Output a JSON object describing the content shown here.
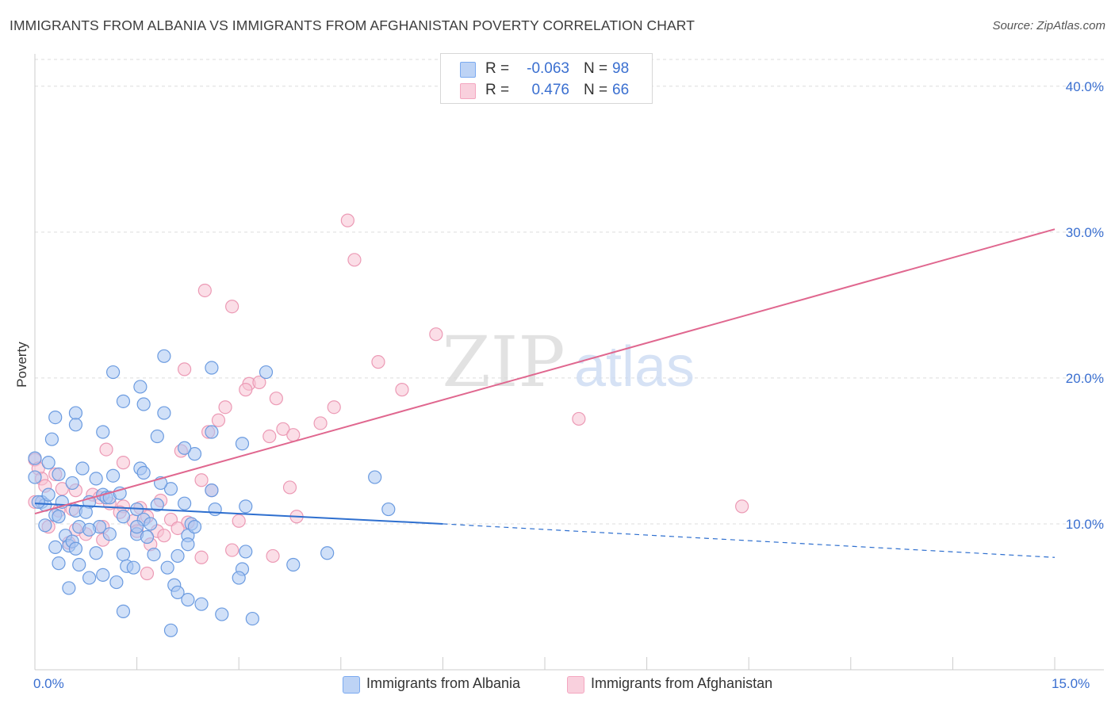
{
  "title": "IMMIGRANTS FROM ALBANIA VS IMMIGRANTS FROM AFGHANISTAN POVERTY CORRELATION CHART",
  "source": "Source: ZipAtlas.com",
  "watermark": {
    "zip": "ZIP",
    "atlas": "atlas"
  },
  "legend_top": [
    {
      "r_label": "R =",
      "r_value": "-0.063",
      "n_label": "N =",
      "n_value": "98",
      "color": "#7baaf0"
    },
    {
      "r_label": "R =",
      "r_value": "0.476",
      "n_label": "N =",
      "n_value": "66",
      "color": "#f4a6c0"
    }
  ],
  "colors": {
    "albania_fill": "#a9c6f2",
    "albania_stroke": "#6b9be0",
    "albania_line": "#2e6fcf",
    "afghanistan_fill": "#f7c3d3",
    "afghanistan_stroke": "#ec9ab5",
    "afghanistan_line": "#e0678f",
    "tick_label": "#3a6fd0",
    "grid": "#dddddd"
  },
  "chart_data": {
    "type": "scatter",
    "title": "IMMIGRANTS FROM ALBANIA VS IMMIGRANTS FROM AFGHANISTAN POVERTY CORRELATION CHART",
    "xlabel": "",
    "ylabel": "Poverty",
    "xlim": [
      0,
      15
    ],
    "ylim": [
      0,
      42
    ],
    "x_tick_labels": [
      "0.0%",
      "15.0%"
    ],
    "y_ticks": [
      10,
      20,
      30,
      40
    ],
    "y_tick_labels": [
      "10.0%",
      "20.0%",
      "30.0%",
      "40.0%"
    ],
    "grid": true,
    "legend_position": "top-center",
    "series": [
      {
        "name": "Immigrants from Albania",
        "r": -0.063,
        "n": 98,
        "trend": {
          "x0": 0,
          "y0": 11.4,
          "x1": 6.0,
          "y1": 10.0,
          "dash_to_x": 15.0,
          "dash_to_y": 7.7
        },
        "points": [
          [
            0.0,
            14.5
          ],
          [
            0.25,
            15.8
          ],
          [
            0.3,
            17.3
          ],
          [
            0.6,
            17.6
          ],
          [
            0.6,
            16.8
          ],
          [
            1.0,
            16.3
          ],
          [
            1.15,
            20.4
          ],
          [
            1.3,
            18.4
          ],
          [
            1.55,
            19.4
          ],
          [
            1.6,
            18.2
          ],
          [
            1.9,
            21.5
          ],
          [
            1.9,
            17.6
          ],
          [
            2.6,
            20.7
          ],
          [
            3.4,
            20.4
          ],
          [
            1.8,
            16.0
          ],
          [
            2.6,
            16.3
          ],
          [
            3.05,
            15.5
          ],
          [
            2.35,
            14.8
          ],
          [
            0.2,
            14.2
          ],
          [
            0.35,
            13.4
          ],
          [
            0.55,
            12.8
          ],
          [
            0.9,
            13.1
          ],
          [
            1.15,
            13.3
          ],
          [
            1.55,
            13.8
          ],
          [
            1.6,
            13.5
          ],
          [
            2.0,
            12.4
          ],
          [
            2.6,
            12.3
          ],
          [
            1.0,
            12.0
          ],
          [
            1.05,
            11.8
          ],
          [
            0.1,
            11.5
          ],
          [
            0.15,
            11.3
          ],
          [
            0.4,
            11.5
          ],
          [
            0.8,
            11.5
          ],
          [
            1.1,
            11.8
          ],
          [
            1.5,
            11.0
          ],
          [
            1.8,
            11.3
          ],
          [
            2.2,
            11.4
          ],
          [
            2.65,
            11.0
          ],
          [
            3.1,
            11.2
          ],
          [
            0.3,
            10.6
          ],
          [
            0.6,
            10.9
          ],
          [
            0.75,
            10.8
          ],
          [
            1.3,
            10.5
          ],
          [
            1.6,
            10.3
          ],
          [
            2.3,
            10.0
          ],
          [
            0.15,
            9.9
          ],
          [
            0.45,
            9.2
          ],
          [
            0.65,
            9.8
          ],
          [
            0.95,
            9.8
          ],
          [
            1.1,
            9.3
          ],
          [
            1.5,
            9.3
          ],
          [
            1.65,
            9.1
          ],
          [
            2.25,
            9.2
          ],
          [
            0.5,
            8.5
          ],
          [
            0.55,
            8.8
          ],
          [
            0.6,
            8.3
          ],
          [
            0.9,
            8.0
          ],
          [
            1.3,
            7.9
          ],
          [
            1.75,
            7.9
          ],
          [
            2.25,
            8.6
          ],
          [
            3.1,
            8.1
          ],
          [
            4.3,
            8.0
          ],
          [
            0.35,
            7.3
          ],
          [
            0.65,
            7.2
          ],
          [
            1.35,
            7.1
          ],
          [
            1.45,
            7.0
          ],
          [
            1.95,
            7.0
          ],
          [
            2.1,
            7.8
          ],
          [
            3.05,
            6.9
          ],
          [
            3.8,
            7.2
          ],
          [
            0.5,
            5.6
          ],
          [
            0.8,
            6.3
          ],
          [
            1.0,
            6.5
          ],
          [
            1.2,
            6.0
          ],
          [
            2.05,
            5.8
          ],
          [
            3.0,
            6.3
          ],
          [
            2.1,
            5.3
          ],
          [
            2.25,
            4.8
          ],
          [
            2.45,
            4.5
          ],
          [
            1.3,
            4.0
          ],
          [
            2.75,
            3.8
          ],
          [
            3.2,
            3.5
          ],
          [
            2.0,
            2.7
          ],
          [
            5.0,
            13.2
          ],
          [
            5.2,
            11.0
          ],
          [
            0.0,
            13.2
          ],
          [
            0.05,
            11.5
          ],
          [
            0.2,
            12.0
          ],
          [
            0.35,
            10.5
          ],
          [
            1.5,
            9.8
          ],
          [
            1.7,
            10.0
          ],
          [
            0.8,
            9.6
          ],
          [
            1.25,
            12.1
          ],
          [
            1.85,
            12.8
          ],
          [
            2.2,
            15.2
          ],
          [
            0.7,
            13.8
          ],
          [
            2.35,
            9.8
          ],
          [
            0.3,
            8.4
          ]
        ]
      },
      {
        "name": "Immigrants from Afghanistan",
        "r": 0.476,
        "n": 66,
        "trend": {
          "x0": 0,
          "y0": 10.7,
          "x1": 15.0,
          "y1": 30.2
        },
        "points": [
          [
            4.6,
            30.8
          ],
          [
            4.7,
            28.1
          ],
          [
            2.5,
            26.0
          ],
          [
            2.9,
            24.9
          ],
          [
            5.9,
            23.0
          ],
          [
            5.05,
            21.1
          ],
          [
            2.2,
            20.6
          ],
          [
            3.15,
            19.6
          ],
          [
            3.1,
            19.2
          ],
          [
            3.3,
            19.7
          ],
          [
            5.4,
            19.2
          ],
          [
            3.55,
            18.6
          ],
          [
            4.4,
            18.0
          ],
          [
            2.8,
            18.0
          ],
          [
            8.0,
            17.2
          ],
          [
            2.7,
            17.1
          ],
          [
            4.2,
            16.9
          ],
          [
            2.55,
            16.3
          ],
          [
            3.65,
            16.5
          ],
          [
            3.8,
            16.1
          ],
          [
            3.45,
            16.0
          ],
          [
            2.15,
            15.0
          ],
          [
            1.05,
            15.1
          ],
          [
            1.3,
            14.2
          ],
          [
            0.0,
            14.4
          ],
          [
            0.05,
            13.8
          ],
          [
            0.3,
            13.4
          ],
          [
            0.1,
            13.1
          ],
          [
            2.45,
            13.0
          ],
          [
            3.75,
            12.5
          ],
          [
            0.6,
            12.3
          ],
          [
            0.85,
            12.0
          ],
          [
            0.15,
            12.6
          ],
          [
            0.4,
            12.4
          ],
          [
            0.95,
            11.8
          ],
          [
            1.1,
            11.4
          ],
          [
            1.3,
            11.2
          ],
          [
            1.55,
            11.1
          ],
          [
            1.85,
            11.6
          ],
          [
            10.4,
            11.2
          ],
          [
            0.0,
            11.5
          ],
          [
            0.55,
            11.0
          ],
          [
            1.25,
            10.8
          ],
          [
            1.65,
            10.5
          ],
          [
            2.0,
            10.3
          ],
          [
            2.25,
            10.1
          ],
          [
            3.0,
            10.2
          ],
          [
            3.85,
            10.5
          ],
          [
            0.6,
            9.6
          ],
          [
            1.0,
            9.8
          ],
          [
            1.45,
            10.2
          ],
          [
            1.8,
            9.5
          ],
          [
            2.1,
            9.7
          ],
          [
            0.75,
            9.3
          ],
          [
            1.0,
            8.9
          ],
          [
            0.5,
            8.7
          ],
          [
            1.7,
            8.6
          ],
          [
            2.9,
            8.2
          ],
          [
            3.5,
            7.8
          ],
          [
            2.45,
            7.7
          ],
          [
            1.65,
            6.6
          ],
          [
            0.2,
            9.8
          ],
          [
            0.35,
            10.9
          ],
          [
            1.9,
            9.2
          ],
          [
            2.6,
            12.3
          ],
          [
            1.5,
            9.5
          ]
        ]
      }
    ]
  }
}
